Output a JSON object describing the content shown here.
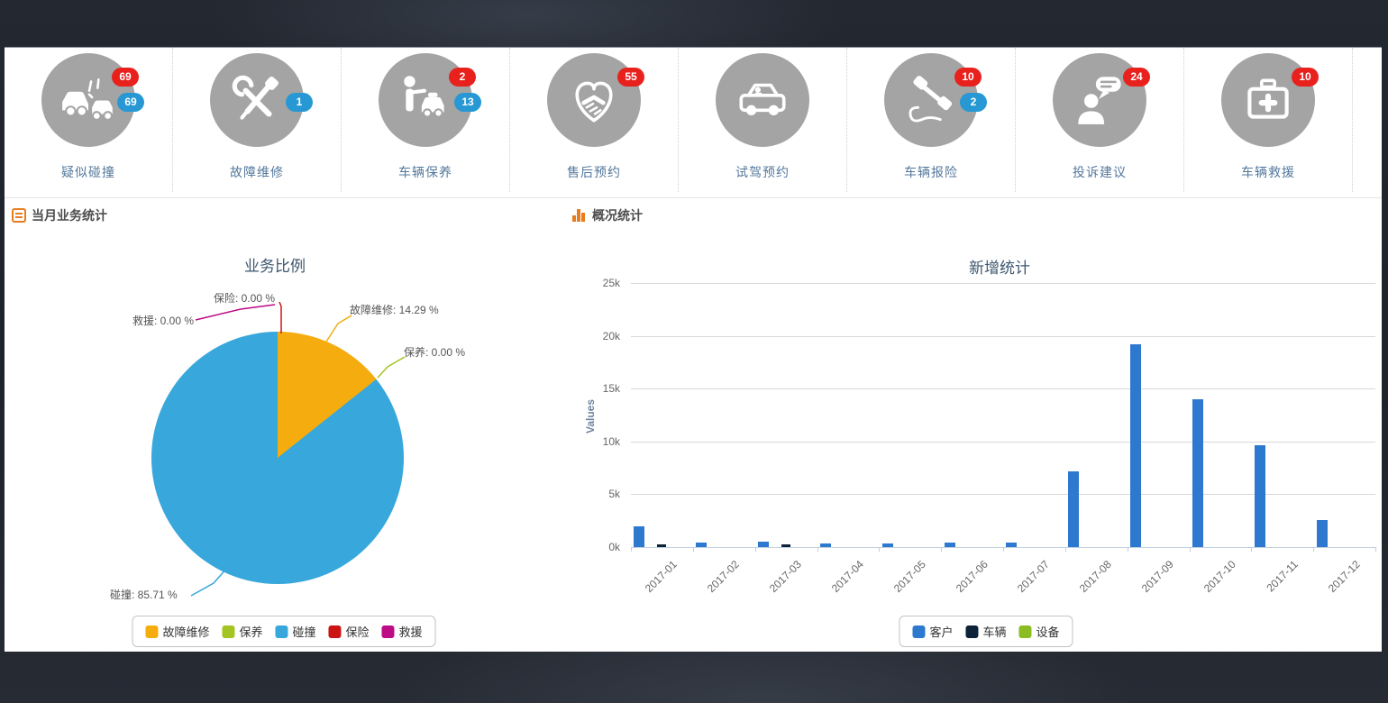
{
  "header_icons": {
    "items": [
      {
        "label": "疑似碰撞",
        "icon": "collision-icon",
        "badge_red": "69",
        "badge_blue": "69"
      },
      {
        "label": "故障维修",
        "icon": "repair-tools-icon",
        "badge_red": null,
        "badge_blue": "1"
      },
      {
        "label": "车辆保养",
        "icon": "maintenance-icon",
        "badge_red": "2",
        "badge_blue": "13"
      },
      {
        "label": "售后预约",
        "icon": "handshake-icon",
        "badge_red": "55",
        "badge_blue": null
      },
      {
        "label": "试驾预约",
        "icon": "test-drive-icon",
        "badge_red": null,
        "badge_blue": null
      },
      {
        "label": "车辆报险",
        "icon": "phone-icon",
        "badge_red": "10",
        "badge_blue": "2"
      },
      {
        "label": "投诉建议",
        "icon": "feedback-icon",
        "badge_red": "24",
        "badge_blue": null
      },
      {
        "label": "车辆救援",
        "icon": "rescue-icon",
        "badge_red": "10",
        "badge_blue": null
      }
    ]
  },
  "panels": {
    "left": {
      "title": "当月业务统计"
    },
    "right": {
      "title": "概况统计"
    }
  },
  "colors": {
    "badge_red": "#e8211d",
    "badge_blue": "#2798d4",
    "icon_circle": "#a4a4a4",
    "icon_label": "#54789c",
    "header_accent": "#e87d1e",
    "chart_title": "#3e576f",
    "yaxis_title": "#6d869f"
  },
  "chart_data": [
    {
      "type": "pie",
      "title": "业务比例",
      "labels": [
        "故障维修",
        "保养",
        "碰撞",
        "保险",
        "救援"
      ],
      "values": [
        14.29,
        0.0,
        85.71,
        0.0,
        0.0
      ],
      "colors": [
        "#f4ac0f",
        "#a4c421",
        "#38a7db",
        "#cc1414",
        "#bd0a85"
      ],
      "data_labels": [
        "故障维修: 14.29 %",
        "保养: 0.00 %",
        "碰撞: 85.71 %",
        "保险: 0.00 %",
        "救援: 0.00 %"
      ],
      "legend_position": "bottom"
    },
    {
      "type": "bar",
      "title": "新增统计",
      "categories": [
        "2017-01",
        "2017-02",
        "2017-03",
        "2017-04",
        "2017-05",
        "2017-06",
        "2017-07",
        "2017-08",
        "2017-09",
        "2017-10",
        "2017-11",
        "2017-12"
      ],
      "series": [
        {
          "name": "客户",
          "color": "#2d79cf",
          "values": [
            2000,
            400,
            500,
            300,
            350,
            400,
            450,
            7200,
            19200,
            14000,
            9600,
            2600
          ]
        },
        {
          "name": "车辆",
          "color": "#0d233a",
          "values": [
            250,
            0,
            250,
            0,
            0,
            0,
            0,
            0,
            0,
            0,
            0,
            0
          ]
        },
        {
          "name": "设备",
          "color": "#8bbc21",
          "values": [
            0,
            0,
            0,
            0,
            0,
            0,
            0,
            0,
            0,
            0,
            0,
            0
          ]
        }
      ],
      "ylabel": "Values",
      "yticks": [
        "25k",
        "20k",
        "15k",
        "10k",
        "5k",
        "0k"
      ],
      "ylim": [
        0,
        25000
      ],
      "grid": true,
      "legend_position": "bottom"
    }
  ]
}
